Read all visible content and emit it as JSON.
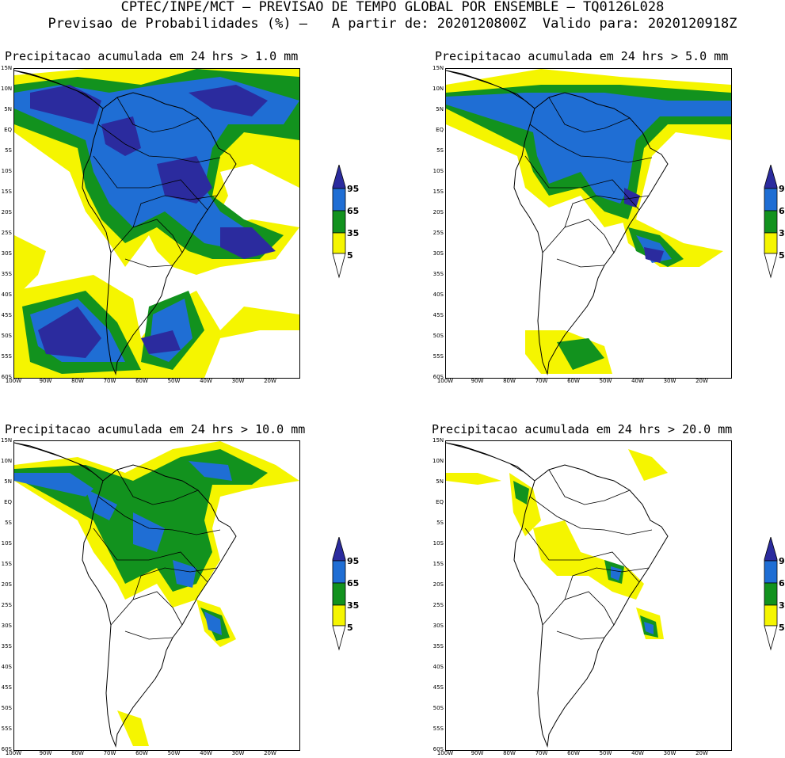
{
  "header": {
    "line1": "CPTEC/INPE/MCT – PREVISAO DE TEMPO GLOBAL POR ENSEMBLE – TQ0126L028",
    "line2": "Previsao de Probabilidades (%) –   A partir de: 2020120800Z  Valido para: 2020120918Z"
  },
  "axes": {
    "lat_ticks": [
      "15N",
      "10N",
      "5N",
      "EQ",
      "5S",
      "10S",
      "15S",
      "20S",
      "25S",
      "30S",
      "35S",
      "40S",
      "45S",
      "50S",
      "55S",
      "60S"
    ],
    "lon_ticks": [
      "100W",
      "90W",
      "80W",
      "70W",
      "60W",
      "50W",
      "40W",
      "30W",
      "20W"
    ]
  },
  "legend": {
    "levels": [
      "95",
      "65",
      "35",
      "5"
    ],
    "colors": {
      "c95": "#2b2b9e",
      "c65": "#1f6ed4",
      "c35": "#12921e",
      "c5": "#f5f500"
    }
  },
  "panels": [
    {
      "title": "Precipitacao acumulada em 24 hrs > 1.0 mm"
    },
    {
      "title": "Precipitacao acumulada em 24 hrs > 5.0 mm"
    },
    {
      "title": "Precipitacao acumulada em 24 hrs > 10.0 mm"
    },
    {
      "title": "Precipitacao acumulada em 24 hrs > 20.0 mm"
    }
  ]
}
